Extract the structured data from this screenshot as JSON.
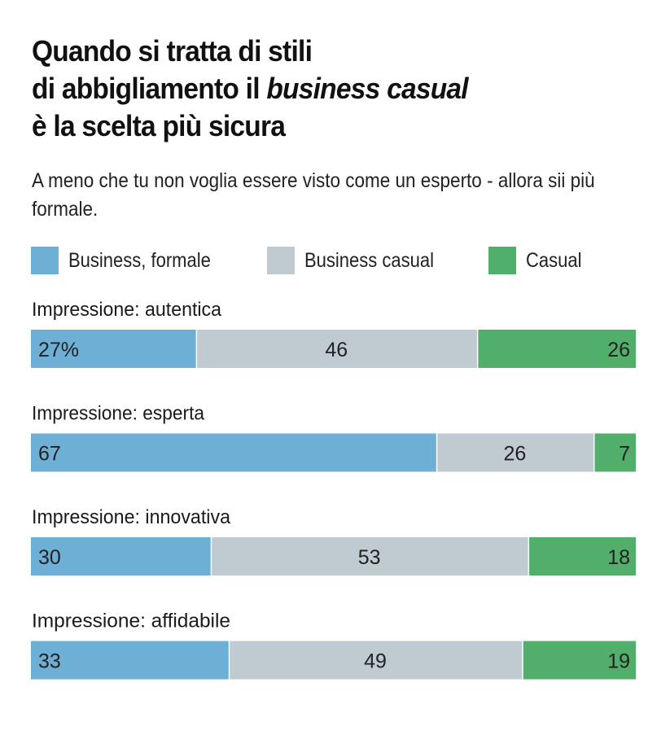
{
  "title": {
    "line1": "Quando si tratta di stili",
    "line2_prefix": "di abbigliamento il ",
    "line2_italic": "business casual",
    "line3": "è la scelta più sicura"
  },
  "subtitle": "A meno che tu non voglia essere visto come un esperto - allora sii più formale.",
  "legend": [
    {
      "label": "Business, formale",
      "color": "#6EAFD6"
    },
    {
      "label": "Business casual",
      "color": "#BFCAD1"
    },
    {
      "label": "Casual",
      "color": "#52AE6B"
    }
  ],
  "chart_data": {
    "type": "bar",
    "orientation": "horizontal-stacked-100",
    "title": "Quando si tratta di stili di abbigliamento il business casual è la scelta più sicura",
    "subtitle": "A meno che tu non voglia essere visto come un esperto - allora sii più formale.",
    "categories": [
      "Impressione: autentica",
      "Impressione: esperta",
      "Impressione: innovativa",
      "Impressione: affidabile"
    ],
    "series": [
      {
        "name": "Business, formale",
        "color": "#6EAFD6",
        "values": [
          27,
          67,
          30,
          33
        ]
      },
      {
        "name": "Business casual",
        "color": "#BFCAD1",
        "values": [
          46,
          26,
          53,
          49
        ]
      },
      {
        "name": "Casual",
        "color": "#52AE6B",
        "values": [
          26,
          7,
          18,
          19
        ]
      }
    ],
    "value_labels": [
      [
        "27%",
        "46",
        "26"
      ],
      [
        "67",
        "26",
        "7"
      ],
      [
        "30",
        "53",
        "18"
      ],
      [
        "33",
        "49",
        "19"
      ]
    ],
    "unit": "%",
    "legend_position": "top",
    "grid": false
  }
}
